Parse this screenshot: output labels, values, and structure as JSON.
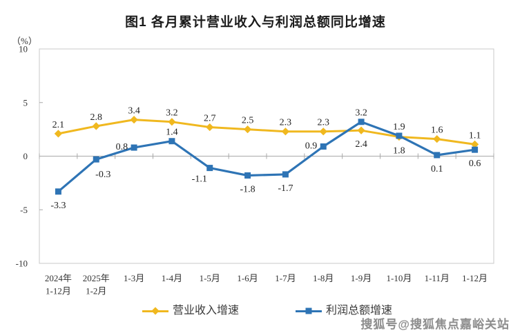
{
  "page": {
    "watermark": "搜狐号@搜狐焦点嘉峪关站"
  },
  "chart_data": {
    "type": "line",
    "title": "图1 各月累计营业收入与利润总额同比增速",
    "unit_label": "（%）",
    "categories": [
      [
        "2024年",
        "1-12月"
      ],
      [
        "2025年",
        "1-2月"
      ],
      [
        "1-3月"
      ],
      [
        "1-4月"
      ],
      [
        "1-5月"
      ],
      [
        "1-6月"
      ],
      [
        "1-7月"
      ],
      [
        "1-8月"
      ],
      [
        "1-9月"
      ],
      [
        "1-10月"
      ],
      [
        "1-11月"
      ],
      [
        "1-12月"
      ]
    ],
    "ylim": [
      -10,
      10
    ],
    "yticks": [
      10,
      5,
      0,
      -5,
      -10
    ],
    "grid": "zero-baseline-only",
    "legend_position": "bottom-center",
    "series": [
      {
        "name": "营业收入增速",
        "color": "#F0B81F",
        "marker": "diamond",
        "values": [
          2.1,
          2.8,
          3.4,
          3.2,
          2.7,
          2.5,
          2.3,
          2.3,
          2.4,
          1.8,
          1.6,
          1.1
        ],
        "label_sides": [
          "above",
          "above",
          "above",
          "above",
          "above",
          "above",
          "above",
          "above",
          "below",
          "below",
          "above",
          "above"
        ]
      },
      {
        "name": "利润总额增速",
        "color": "#2E74B5",
        "marker": "square",
        "values": [
          -3.3,
          -0.3,
          0.8,
          1.4,
          -1.1,
          -1.8,
          -1.7,
          0.9,
          3.2,
          1.9,
          0.1,
          0.6
        ],
        "label_sides": [
          "below",
          "below-right",
          "left",
          "above",
          "below-left",
          "below",
          "below",
          "left",
          "above",
          "above",
          "below",
          "below"
        ]
      }
    ]
  }
}
